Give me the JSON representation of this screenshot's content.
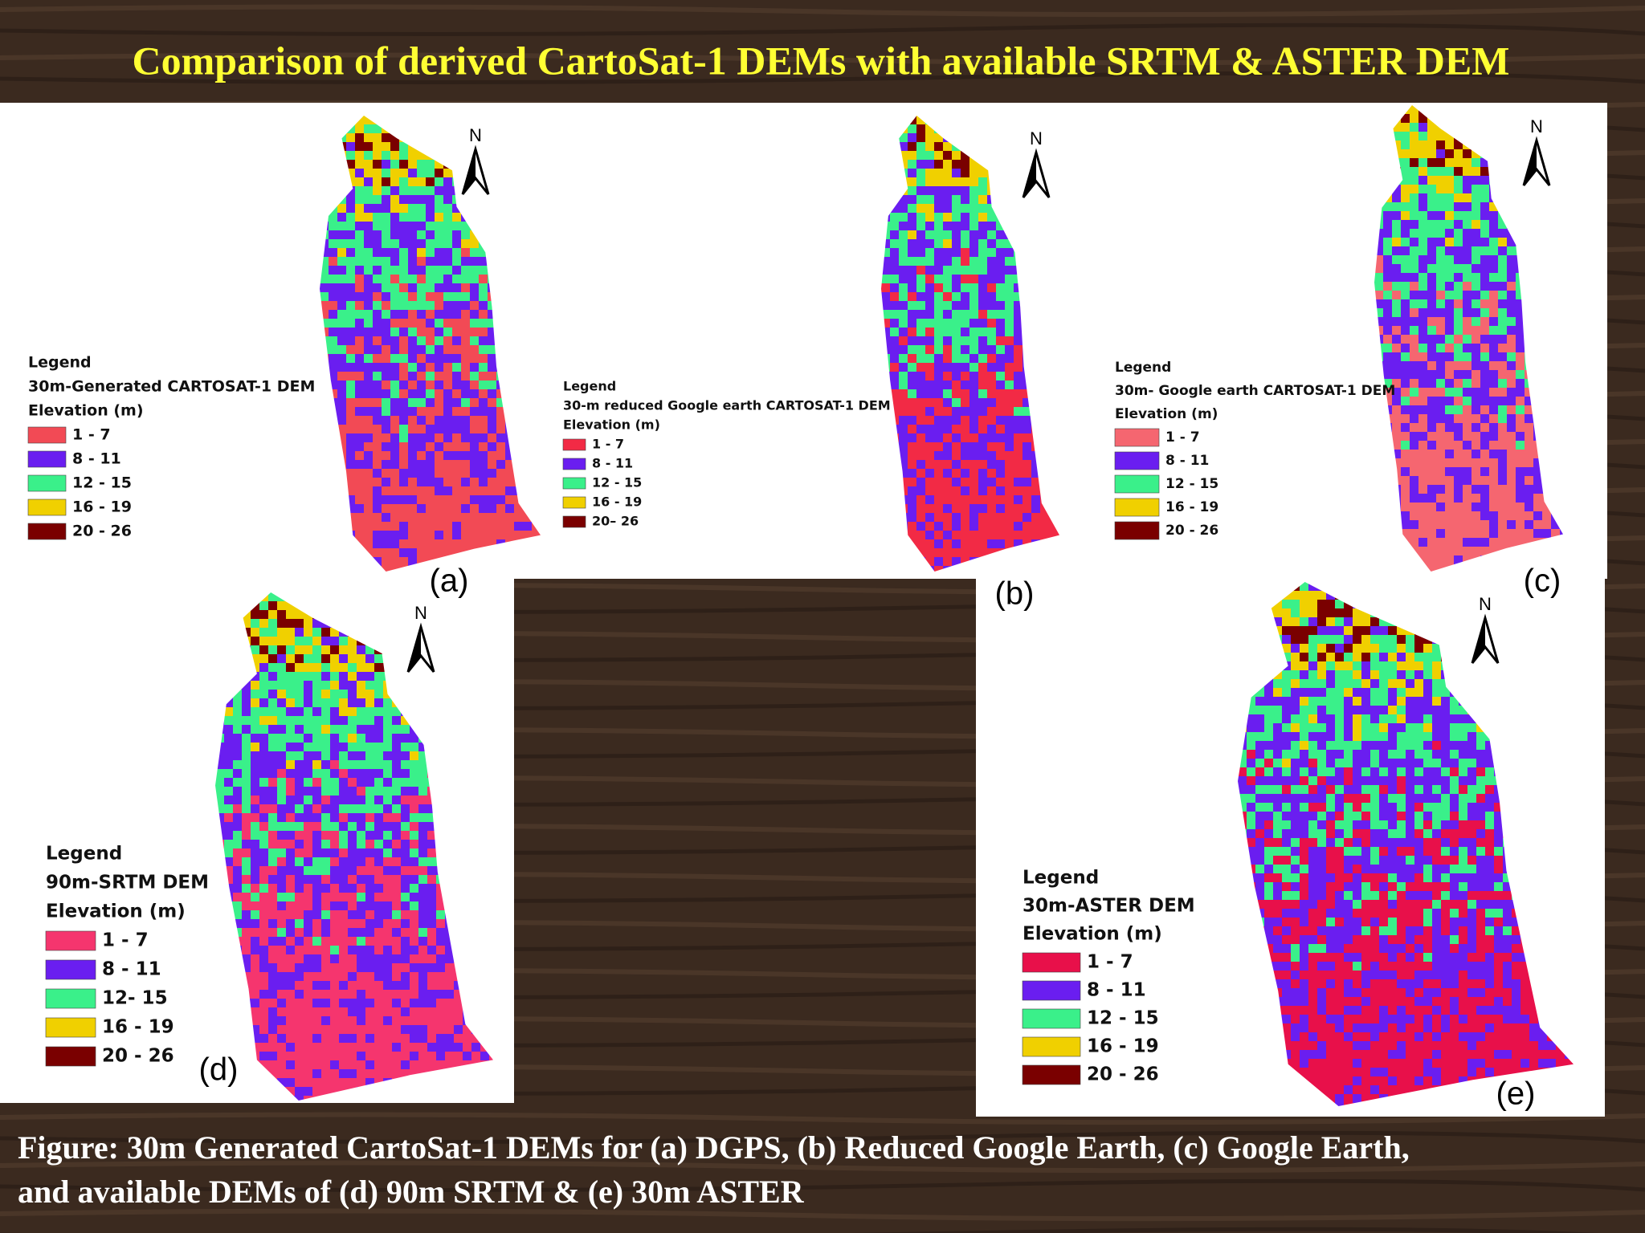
{
  "title": "Comparison of  derived CartoSat-1 DEMs with available SRTM  & ASTER DEM",
  "panels": [
    {
      "label": "(a)",
      "north": "N",
      "legend": {
        "heading": "Legend",
        "name": "30m-Generated CARTOSAT-1 DEM",
        "unit": "Elevation (m)",
        "items": [
          {
            "label": "1 - 7",
            "color": "#f24a55"
          },
          {
            "label": "8 - 11",
            "color": "#6a1ef0"
          },
          {
            "label": "12 - 15",
            "color": "#3af08a"
          },
          {
            "label": "16 - 19",
            "color": "#f0d000"
          },
          {
            "label": "20 - 26",
            "color": "#7a0000"
          }
        ]
      }
    },
    {
      "label": "(b)",
      "north": "N",
      "legend": {
        "heading": "Legend",
        "name": "30-m reduced Google earth CARTOSAT-1 DEM",
        "unit": "Elevation (m)",
        "items": [
          {
            "label": "1 - 7",
            "color": "#f22a45"
          },
          {
            "label": "8 - 11",
            "color": "#6a1ef0"
          },
          {
            "label": "12 - 15",
            "color": "#3af08a"
          },
          {
            "label": "16 - 19",
            "color": "#f0d000"
          },
          {
            "label": "20– 26",
            "color": "#7a0000"
          }
        ]
      }
    },
    {
      "label": "(c)",
      "north": "N",
      "legend": {
        "heading": "Legend",
        "name": "30m- Google earth CARTOSAT-1 DEM",
        "unit": "Elevation (m)",
        "items": [
          {
            "label": "1 - 7",
            "color": "#f56670"
          },
          {
            "label": "8 - 11",
            "color": "#6a1ef0"
          },
          {
            "label": "12 - 15",
            "color": "#3af08a"
          },
          {
            "label": "16 - 19",
            "color": "#f0d000"
          },
          {
            "label": "20 - 26",
            "color": "#7a0000"
          }
        ]
      }
    },
    {
      "label": "(d)",
      "north": "N",
      "legend": {
        "heading": "Legend",
        "name": "90m-SRTM DEM",
        "unit": "Elevation (m)",
        "items": [
          {
            "label": "1 - 7",
            "color": "#f5356e"
          },
          {
            "label": "8 - 11",
            "color": "#6a1ef0"
          },
          {
            "label": "12- 15",
            "color": "#3af08a"
          },
          {
            "label": "16 - 19",
            "color": "#f0d000"
          },
          {
            "label": "20 - 26",
            "color": "#7a0000"
          }
        ]
      }
    },
    {
      "label": "(e)",
      "north": "N",
      "legend": {
        "heading": "Legend",
        "name": "30m-ASTER DEM",
        "unit": "Elevation (m)",
        "items": [
          {
            "label": "1 - 7",
            "color": "#e8104a"
          },
          {
            "label": "8 - 11",
            "color": "#6a1ef0"
          },
          {
            "label": "12 - 15",
            "color": "#3af08a"
          },
          {
            "label": "16 - 19",
            "color": "#f0d000"
          },
          {
            "label": "20 - 26",
            "color": "#7a0000"
          }
        ]
      }
    }
  ],
  "caption": [
    "Figure: 30m Generated CartoSat-1 DEMs for (a) DGPS, (b) Reduced Google Earth, (c) Google Earth,",
    "and available DEMs of (d) 90m SRTM  & (e) 30m ASTER"
  ]
}
